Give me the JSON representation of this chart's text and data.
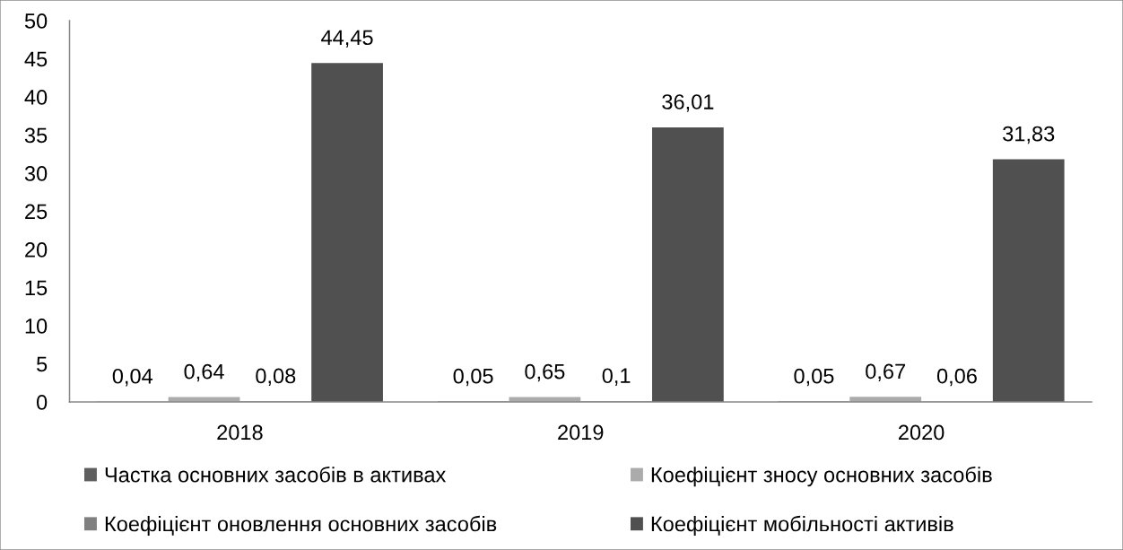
{
  "chart_data": {
    "type": "bar",
    "categories": [
      "2018",
      "2019",
      "2020"
    ],
    "series": [
      {
        "name": "Частка основних засобів в активах",
        "color": "#5f5f5f",
        "values": [
          0.04,
          0.05,
          0.05
        ],
        "value_labels": [
          "0,04",
          "0,05",
          "0,05"
        ]
      },
      {
        "name": "Коефіцієнт зносу основних засобів",
        "color": "#ababab",
        "values": [
          0.64,
          0.65,
          0.67
        ],
        "value_labels": [
          "0,64",
          "0,65",
          "0,67"
        ]
      },
      {
        "name": "Коефіцієнт оновлення основних засобів",
        "color": "#808080",
        "values": [
          0.08,
          0.1,
          0.06
        ],
        "value_labels": [
          "0,08",
          "0,1",
          "0,06"
        ]
      },
      {
        "name": "Коефіцієнт мобільності активів",
        "color": "#505050",
        "values": [
          44.45,
          36.01,
          31.83
        ],
        "value_labels": [
          "44,45",
          "36,01",
          "31,83"
        ]
      }
    ],
    "ylim": [
      0,
      50
    ],
    "yticks": [
      0,
      5,
      10,
      15,
      20,
      25,
      30,
      35,
      40,
      45,
      50
    ],
    "legend": "bottom"
  }
}
